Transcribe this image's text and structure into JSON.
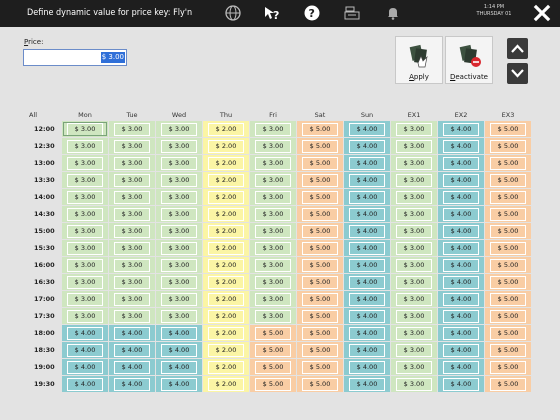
{
  "header": {
    "title": "Define dynamic value for price key: Fly'n",
    "time": "1:14 PM",
    "day": "THURSDAY 01"
  },
  "price": {
    "label_prefix": "P",
    "label_rest": "rice:",
    "value": "$ 3.00"
  },
  "actions": {
    "apply_prefix": "A",
    "apply_rest": "pply",
    "deactivate_prefix": "D",
    "deactivate_rest": "eactivate"
  },
  "grid": {
    "all_label": "All",
    "days": [
      "Mon",
      "Tue",
      "Wed",
      "Thu",
      "Fri",
      "Sat",
      "Sun",
      "EX1",
      "EX2",
      "EX3"
    ],
    "times": [
      "12:00",
      "12:30",
      "13:00",
      "13:30",
      "14:00",
      "14:30",
      "15:00",
      "15:30",
      "16:00",
      "16:30",
      "17:00",
      "17:30",
      "18:00",
      "18:30",
      "19:00",
      "19:30"
    ],
    "rows": [
      [
        "$ 3.00",
        "$ 3.00",
        "$ 3.00",
        "$ 2.00",
        "$ 3.00",
        "$ 5.00",
        "$ 4.00",
        "$ 3.00",
        "$ 4.00",
        "$ 5.00"
      ],
      [
        "$ 3.00",
        "$ 3.00",
        "$ 3.00",
        "$ 2.00",
        "$ 3.00",
        "$ 5.00",
        "$ 4.00",
        "$ 3.00",
        "$ 4.00",
        "$ 5.00"
      ],
      [
        "$ 3.00",
        "$ 3.00",
        "$ 3.00",
        "$ 2.00",
        "$ 3.00",
        "$ 5.00",
        "$ 4.00",
        "$ 3.00",
        "$ 4.00",
        "$ 5.00"
      ],
      [
        "$ 3.00",
        "$ 3.00",
        "$ 3.00",
        "$ 2.00",
        "$ 3.00",
        "$ 5.00",
        "$ 4.00",
        "$ 3.00",
        "$ 4.00",
        "$ 5.00"
      ],
      [
        "$ 3.00",
        "$ 3.00",
        "$ 3.00",
        "$ 2.00",
        "$ 3.00",
        "$ 5.00",
        "$ 4.00",
        "$ 3.00",
        "$ 4.00",
        "$ 5.00"
      ],
      [
        "$ 3.00",
        "$ 3.00",
        "$ 3.00",
        "$ 2.00",
        "$ 3.00",
        "$ 5.00",
        "$ 4.00",
        "$ 3.00",
        "$ 4.00",
        "$ 5.00"
      ],
      [
        "$ 3.00",
        "$ 3.00",
        "$ 3.00",
        "$ 2.00",
        "$ 3.00",
        "$ 5.00",
        "$ 4.00",
        "$ 3.00",
        "$ 4.00",
        "$ 5.00"
      ],
      [
        "$ 3.00",
        "$ 3.00",
        "$ 3.00",
        "$ 2.00",
        "$ 3.00",
        "$ 5.00",
        "$ 4.00",
        "$ 3.00",
        "$ 4.00",
        "$ 5.00"
      ],
      [
        "$ 3.00",
        "$ 3.00",
        "$ 3.00",
        "$ 2.00",
        "$ 3.00",
        "$ 5.00",
        "$ 4.00",
        "$ 3.00",
        "$ 4.00",
        "$ 5.00"
      ],
      [
        "$ 3.00",
        "$ 3.00",
        "$ 3.00",
        "$ 2.00",
        "$ 3.00",
        "$ 5.00",
        "$ 4.00",
        "$ 3.00",
        "$ 4.00",
        "$ 5.00"
      ],
      [
        "$ 3.00",
        "$ 3.00",
        "$ 3.00",
        "$ 2.00",
        "$ 3.00",
        "$ 5.00",
        "$ 4.00",
        "$ 3.00",
        "$ 4.00",
        "$ 5.00"
      ],
      [
        "$ 3.00",
        "$ 3.00",
        "$ 3.00",
        "$ 2.00",
        "$ 3.00",
        "$ 5.00",
        "$ 4.00",
        "$ 3.00",
        "$ 4.00",
        "$ 5.00"
      ],
      [
        "$ 4.00",
        "$ 4.00",
        "$ 4.00",
        "$ 2.00",
        "$ 5.00",
        "$ 5.00",
        "$ 4.00",
        "$ 3.00",
        "$ 4.00",
        "$ 5.00"
      ],
      [
        "$ 4.00",
        "$ 4.00",
        "$ 4.00",
        "$ 2.00",
        "$ 5.00",
        "$ 5.00",
        "$ 4.00",
        "$ 3.00",
        "$ 4.00",
        "$ 5.00"
      ],
      [
        "$ 4.00",
        "$ 4.00",
        "$ 4.00",
        "$ 2.00",
        "$ 5.00",
        "$ 5.00",
        "$ 4.00",
        "$ 3.00",
        "$ 4.00",
        "$ 5.00"
      ],
      [
        "$ 4.00",
        "$ 4.00",
        "$ 4.00",
        "$ 2.00",
        "$ 5.00",
        "$ 5.00",
        "$ 4.00",
        "$ 3.00",
        "$ 4.00",
        "$ 5.00"
      ]
    ],
    "color_map": {
      "$ 2.00": "y",
      "$ 3.00": "g",
      "$ 4.00": "t",
      "$ 5.00": "o"
    },
    "colors": {
      "green": "#cfe6c0",
      "yellow": "#fbf5a5",
      "orange": "#f9cda4",
      "teal": "#8ccbd0"
    }
  },
  "icons": [
    "globe-icon",
    "help-pointer-icon",
    "help-circle-icon",
    "cash-register-icon",
    "bell-icon",
    "close-icon",
    "apply-icon",
    "deactivate-icon",
    "arrow-up-icon",
    "arrow-down-icon"
  ]
}
